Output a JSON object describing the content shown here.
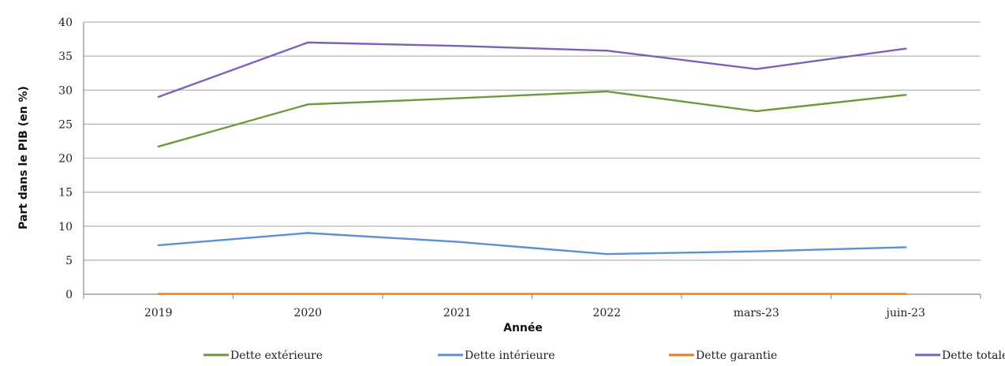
{
  "chart_data": {
    "type": "line",
    "title": "",
    "xlabel": "Année",
    "ylabel": "Part dans le PIB (en %)",
    "categories": [
      "2019",
      "2020",
      "2021",
      "2022",
      "mars-23",
      "juin-23"
    ],
    "ylim": [
      0,
      40
    ],
    "yticks": [
      0,
      5,
      10,
      15,
      20,
      25,
      30,
      35,
      40
    ],
    "grid": true,
    "legend_position": "bottom",
    "series": [
      {
        "name": "Dette extérieure",
        "color": "#6a9a3a",
        "values": [
          21.7,
          27.9,
          28.8,
          29.8,
          26.9,
          29.3
        ]
      },
      {
        "name": "Dette intérieure",
        "color": "#5b8fd6",
        "values": [
          7.2,
          9.0,
          7.7,
          5.9,
          6.3,
          6.9
        ]
      },
      {
        "name": "Dette garantie",
        "color": "#f07b1f",
        "values": [
          0.05,
          0.05,
          0.05,
          0.05,
          0.05,
          0.05
        ]
      },
      {
        "name": "Dette totale",
        "color": "#7d5fb8",
        "values": [
          29.0,
          37.0,
          36.5,
          35.8,
          33.1,
          36.1
        ]
      }
    ]
  }
}
